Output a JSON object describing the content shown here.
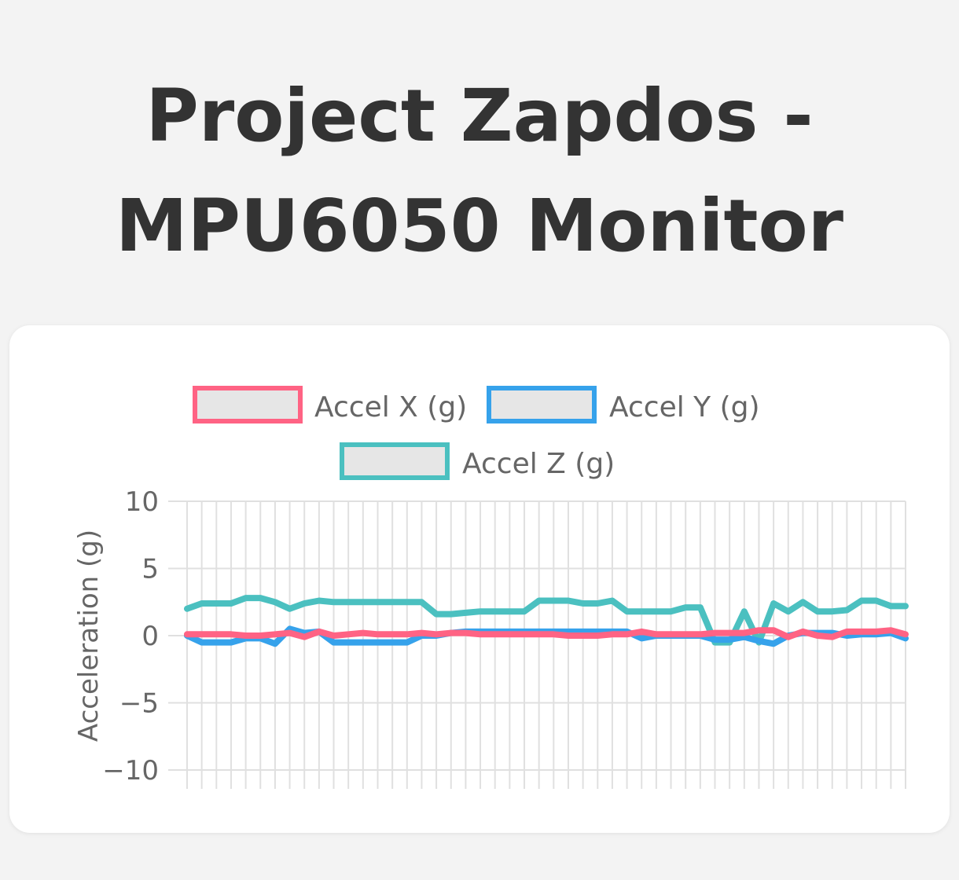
{
  "page": {
    "title_line1": "Project Zapdos -",
    "title_line2": "MPU6050 Monitor"
  },
  "chart_data": {
    "type": "line",
    "title": "",
    "xlabel": "",
    "ylabel": "Acceleration (g)",
    "ylim": [
      -10,
      10
    ],
    "yticks": [
      10,
      5,
      0,
      -5,
      -10
    ],
    "ytick_labels": [
      "10",
      "5",
      "0",
      "−5",
      "−10"
    ],
    "point_count": 50,
    "grid": true,
    "legend_position": "top-center",
    "series": [
      {
        "name": "Accel X (g)",
        "color": "#ff6384",
        "values": [
          0.1,
          0.1,
          0.1,
          0.1,
          0.0,
          0.0,
          0.1,
          0.2,
          -0.1,
          0.3,
          0.0,
          0.1,
          0.2,
          0.1,
          0.1,
          0.1,
          0.2,
          0.1,
          0.2,
          0.2,
          0.1,
          0.1,
          0.1,
          0.1,
          0.1,
          0.1,
          0.0,
          0.0,
          0.0,
          0.1,
          0.1,
          0.3,
          0.1,
          0.1,
          0.1,
          0.1,
          0.2,
          0.2,
          0.2,
          0.4,
          0.4,
          -0.1,
          0.3,
          0.0,
          -0.1,
          0.3,
          0.3,
          0.3,
          0.4,
          0.1
        ]
      },
      {
        "name": "Accel Y (g)",
        "color": "#36a2eb",
        "values": [
          0.0,
          -0.5,
          -0.5,
          -0.5,
          -0.2,
          -0.2,
          -0.6,
          0.5,
          0.2,
          0.3,
          -0.5,
          -0.5,
          -0.5,
          -0.5,
          -0.5,
          -0.5,
          0.0,
          0.0,
          0.2,
          0.3,
          0.3,
          0.3,
          0.3,
          0.3,
          0.3,
          0.3,
          0.3,
          0.3,
          0.3,
          0.3,
          0.3,
          -0.2,
          0.0,
          0.0,
          0.0,
          0.0,
          -0.3,
          -0.3,
          -0.1,
          -0.4,
          -0.6,
          0.0,
          0.2,
          0.2,
          0.2,
          0.0,
          0.1,
          0.1,
          0.2,
          -0.2
        ]
      },
      {
        "name": "Accel Z (g)",
        "color": "#4bc0c0",
        "values": [
          2.0,
          2.4,
          2.4,
          2.4,
          2.8,
          2.8,
          2.5,
          2.0,
          2.4,
          2.6,
          2.5,
          2.5,
          2.5,
          2.5,
          2.5,
          2.5,
          2.5,
          1.6,
          1.6,
          1.7,
          1.8,
          1.8,
          1.8,
          1.8,
          2.6,
          2.6,
          2.6,
          2.4,
          2.4,
          2.6,
          1.8,
          1.8,
          1.8,
          1.8,
          2.1,
          2.1,
          -0.5,
          -0.5,
          1.8,
          -0.5,
          2.4,
          1.8,
          2.5,
          1.8,
          1.8,
          1.9,
          2.6,
          2.6,
          2.2,
          2.2
        ]
      }
    ]
  }
}
